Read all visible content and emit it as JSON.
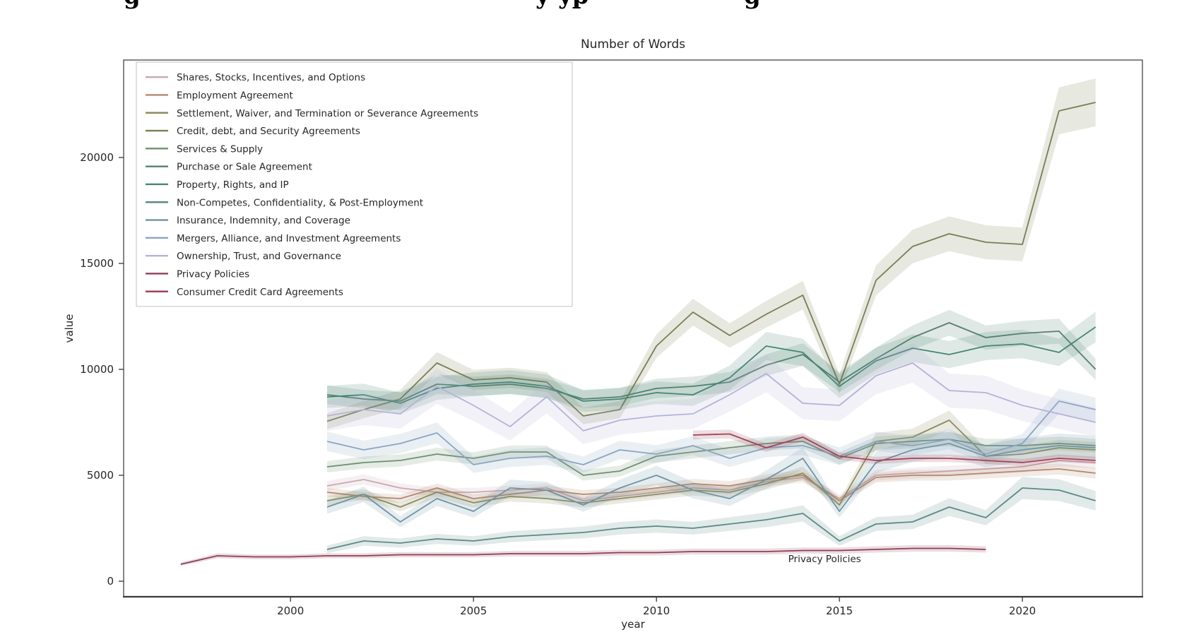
{
  "page": {
    "top_cropped_text_fragments": [
      {
        "text": "g",
        "x": 175
      },
      {
        "text": "y",
        "x": 758
      },
      {
        "text": "yp",
        "x": 790
      },
      {
        "text": "g",
        "x": 1053
      }
    ]
  },
  "chart_data": {
    "type": "line",
    "title": "Number of Words",
    "xlabel": "year",
    "ylabel": "value",
    "x_ticks": [
      2000,
      2005,
      2010,
      2015,
      2020
    ],
    "y_ticks": [
      0,
      5000,
      10000,
      15000,
      20000
    ],
    "xlim": [
      1995.44,
      2023.28
    ],
    "ylim": [
      -733,
      24600
    ],
    "grid": false,
    "legend_position": "upper left",
    "annotation": {
      "text": "Privacy Policies",
      "x": 2013.6,
      "y": 900
    },
    "series": [
      {
        "name": "Shares, Stocks, Incentives, and Options",
        "color": "#c9a7b2",
        "band": 0.05,
        "x": [
          2001,
          2002,
          2003,
          2004,
          2005,
          2006,
          2007,
          2008,
          2009,
          2010,
          2011,
          2012,
          2013,
          2014,
          2015,
          2016,
          2017,
          2018,
          2019,
          2020,
          2021,
          2022
        ],
        "y": [
          4500,
          4800,
          4400,
          4200,
          4200,
          4300,
          4400,
          3800,
          4000,
          4200,
          4400,
          4300,
          4700,
          4900,
          3900,
          5000,
          5100,
          5200,
          5300,
          5400,
          5700,
          5600
        ]
      },
      {
        "name": "Employment Agreement",
        "color": "#b3886f",
        "band": 0.05,
        "x": [
          2001,
          2002,
          2003,
          2004,
          2005,
          2006,
          2007,
          2008,
          2009,
          2010,
          2011,
          2012,
          2013,
          2014,
          2015,
          2016,
          2017,
          2018,
          2019,
          2020,
          2021,
          2022
        ],
        "y": [
          4200,
          4000,
          3900,
          4400,
          3900,
          4100,
          4300,
          4100,
          4200,
          4400,
          4600,
          4500,
          4800,
          5000,
          3800,
          4900,
          5000,
          5000,
          5100,
          5200,
          5300,
          5100
        ]
      },
      {
        "name": "Settlement, Waiver, and Termination or Severance Agreements",
        "color": "#8c8c5e",
        "band": 0.06,
        "x": [
          2001,
          2002,
          2003,
          2004,
          2005,
          2006,
          2007,
          2008,
          2009,
          2010,
          2011,
          2012,
          2013,
          2014,
          2015,
          2016,
          2017,
          2018,
          2019,
          2020,
          2021,
          2022
        ],
        "y": [
          3800,
          4100,
          3500,
          4200,
          3700,
          4000,
          3900,
          3700,
          3900,
          4100,
          4300,
          4200,
          4600,
          5100,
          3600,
          6600,
          6800,
          7600,
          5900,
          6000,
          6300,
          6200
        ]
      },
      {
        "name": "Credit, debt, and Security Agreements",
        "color": "#7a7d52",
        "band": 0.05,
        "x": [
          2001,
          2002,
          2003,
          2004,
          2005,
          2006,
          2007,
          2008,
          2009,
          2010,
          2011,
          2012,
          2013,
          2014,
          2015,
          2016,
          2017,
          2018,
          2019,
          2020,
          2021,
          2022
        ],
        "y": [
          7550,
          8100,
          8600,
          10300,
          9500,
          9600,
          9400,
          7800,
          8100,
          11100,
          12700,
          11600,
          12600,
          13500,
          9300,
          14200,
          15800,
          16400,
          16000,
          15900,
          22200,
          22600
        ]
      },
      {
        "name": "Services & Supply",
        "color": "#6e9070",
        "band": 0.05,
        "x": [
          2001,
          2002,
          2003,
          2004,
          2005,
          2006,
          2007,
          2008,
          2009,
          2010,
          2011,
          2012,
          2013,
          2014,
          2015,
          2016,
          2017,
          2018,
          2019,
          2020,
          2021,
          2022
        ],
        "y": [
          5400,
          5600,
          5700,
          6000,
          5800,
          6100,
          6100,
          5000,
          5200,
          5900,
          6100,
          6300,
          6500,
          6600,
          5800,
          6500,
          6600,
          6700,
          6400,
          6400,
          6500,
          6400
        ]
      },
      {
        "name": "Purchase or Sale Agreement",
        "color": "#55806d",
        "band": 0.05,
        "x": [
          2001,
          2002,
          2003,
          2004,
          2005,
          2006,
          2007,
          2008,
          2009,
          2010,
          2011,
          2012,
          2013,
          2014,
          2015,
          2016,
          2017,
          2018,
          2019,
          2020,
          2021,
          2022
        ],
        "y": [
          8800,
          8600,
          8500,
          9300,
          9200,
          9300,
          9100,
          8600,
          8700,
          9100,
          9200,
          9400,
          10200,
          10700,
          9400,
          10500,
          11500,
          12200,
          11500,
          11700,
          11800,
          10000
        ]
      },
      {
        "name": "Property, Rights, and IP",
        "color": "#468577",
        "band": 0.06,
        "x": [
          2001,
          2002,
          2003,
          2004,
          2005,
          2006,
          2007,
          2008,
          2009,
          2010,
          2011,
          2012,
          2013,
          2014,
          2015,
          2016,
          2017,
          2018,
          2019,
          2020,
          2021,
          2022
        ],
        "y": [
          8700,
          8800,
          8400,
          9100,
          9300,
          9400,
          9200,
          8500,
          8600,
          8900,
          8800,
          9600,
          11100,
          10800,
          9200,
          10400,
          11000,
          10700,
          11100,
          11200,
          10800,
          12000
        ]
      },
      {
        "name": "Non-Competes, Confidentiality, & Post-Employment",
        "color": "#5b8a86",
        "band": 0.12,
        "x": [
          2001,
          2002,
          2003,
          2004,
          2005,
          2006,
          2007,
          2008,
          2009,
          2010,
          2011,
          2012,
          2013,
          2014,
          2015,
          2016,
          2017,
          2018,
          2019,
          2020,
          2021,
          2022
        ],
        "y": [
          1500,
          1900,
          1800,
          2000,
          1900,
          2100,
          2200,
          2300,
          2500,
          2600,
          2500,
          2700,
          2900,
          3200,
          1900,
          2700,
          2800,
          3500,
          3000,
          4400,
          4300,
          3800
        ]
      },
      {
        "name": "Insurance, Indemnity, and Coverage",
        "color": "#6f93a4",
        "band": 0.09,
        "x": [
          2001,
          2002,
          2003,
          2004,
          2005,
          2006,
          2007,
          2008,
          2009,
          2010,
          2011,
          2012,
          2013,
          2014,
          2015,
          2016,
          2017,
          2018,
          2019,
          2020,
          2021,
          2022
        ],
        "y": [
          3500,
          4100,
          2800,
          3900,
          3300,
          4400,
          4300,
          3600,
          4400,
          5000,
          4300,
          3900,
          4800,
          5800,
          3300,
          5600,
          6200,
          6500,
          5900,
          6200,
          6400,
          6300
        ]
      },
      {
        "name": "Mergers, Alliance, and Investment Agreements",
        "color": "#8aa5c3",
        "band": 0.07,
        "x": [
          2001,
          2002,
          2003,
          2004,
          2005,
          2006,
          2007,
          2008,
          2009,
          2010,
          2011,
          2012,
          2013,
          2014,
          2015,
          2016,
          2017,
          2018,
          2019,
          2020,
          2021,
          2022
        ],
        "y": [
          6600,
          6200,
          6500,
          7000,
          5500,
          5800,
          5900,
          5500,
          6200,
          6000,
          6400,
          5800,
          6300,
          6400,
          5900,
          6600,
          6400,
          6700,
          6000,
          6500,
          8500,
          8100
        ]
      },
      {
        "name": "Ownership, Trust, and Governance",
        "color": "#b5b2d8",
        "band": 0.09,
        "x": [
          2001,
          2002,
          2003,
          2004,
          2005,
          2006,
          2007,
          2008,
          2009,
          2010,
          2011,
          2012,
          2013,
          2014,
          2015,
          2016,
          2017,
          2018,
          2019,
          2020,
          2021,
          2022
        ],
        "y": [
          7800,
          8100,
          7900,
          9200,
          8300,
          7300,
          8700,
          7100,
          7600,
          7800,
          7900,
          8800,
          9800,
          8400,
          8300,
          9700,
          10300,
          9000,
          8900,
          8300,
          7900,
          7500
        ]
      },
      {
        "name": "Privacy Policies",
        "color": "#8e3f55",
        "band": 0.1,
        "x": [
          1997,
          1998,
          1999,
          2000,
          2001,
          2002,
          2003,
          2004,
          2005,
          2006,
          2007,
          2008,
          2009,
          2010,
          2011,
          2012,
          2013,
          2014,
          2015,
          2016,
          2017,
          2018,
          2019
        ],
        "y": [
          800,
          1200,
          1150,
          1150,
          1200,
          1200,
          1250,
          1250,
          1250,
          1300,
          1300,
          1300,
          1350,
          1350,
          1400,
          1400,
          1400,
          1450,
          1450,
          1500,
          1550,
          1550,
          1500
        ]
      },
      {
        "name": "Consumer Credit Card Agreements",
        "color": "#a04458",
        "band": 0.03,
        "x": [
          2011,
          2012,
          2013,
          2014,
          2015,
          2016,
          2017,
          2018,
          2019,
          2020,
          2021,
          2022
        ],
        "y": [
          6900,
          6950,
          6300,
          6800,
          5900,
          5700,
          5800,
          5800,
          5700,
          5600,
          5800,
          5700
        ]
      }
    ]
  }
}
